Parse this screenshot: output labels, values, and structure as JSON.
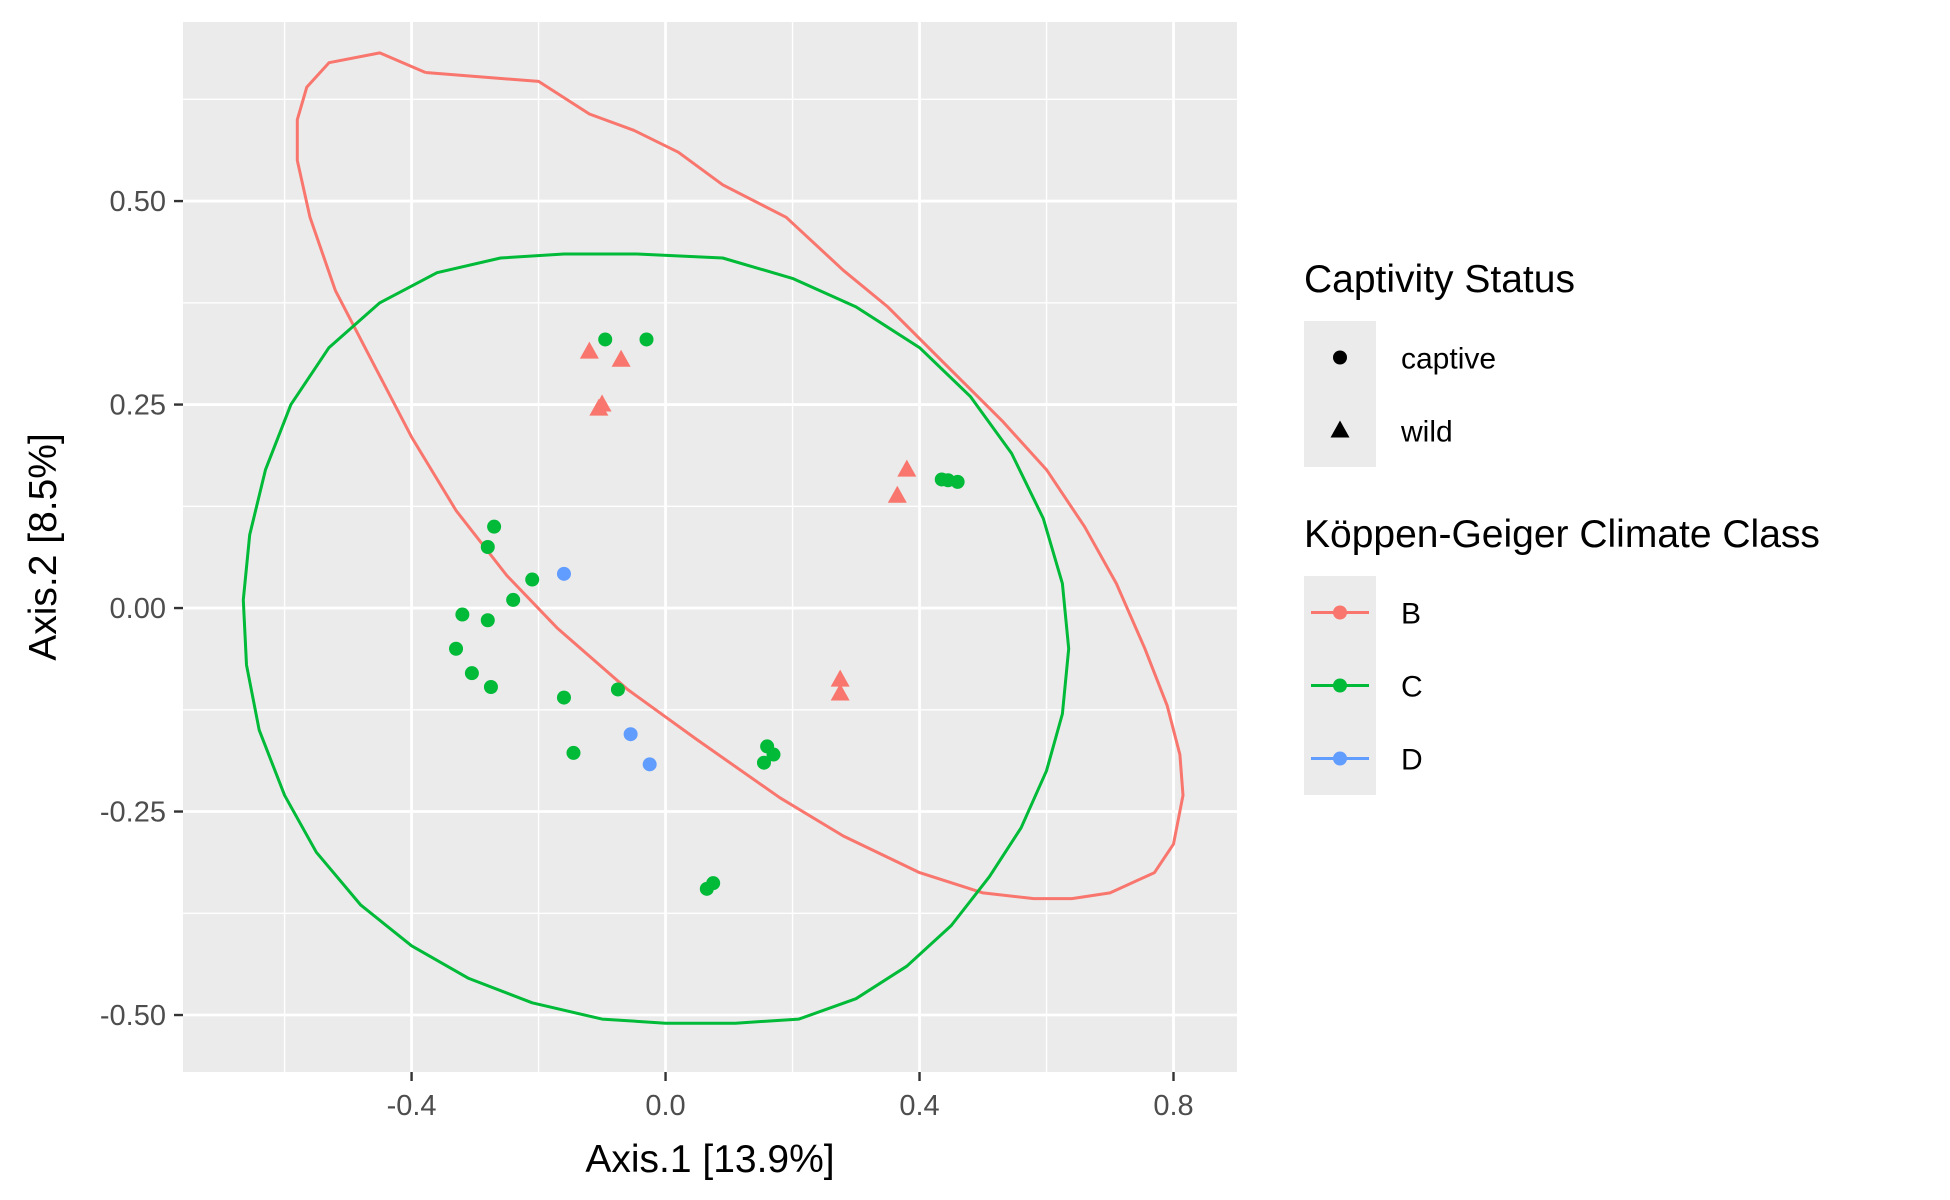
{
  "chart_data": {
    "type": "scatter",
    "xlabel": "Axis.1   [13.9%]",
    "ylabel": "Axis.2   [8.5%]",
    "xlim": [
      -0.76,
      0.9
    ],
    "ylim": [
      -0.57,
      0.72
    ],
    "x_ticks": [
      {
        "value": -0.4,
        "label": "-0.4"
      },
      {
        "value": 0.0,
        "label": "0.0"
      },
      {
        "value": 0.4,
        "label": "0.4"
      },
      {
        "value": 0.8,
        "label": "0.8"
      }
    ],
    "y_ticks": [
      {
        "value": 0.5,
        "label": "0.50"
      },
      {
        "value": 0.25,
        "label": "0.25"
      },
      {
        "value": 0.0,
        "label": "0.00"
      },
      {
        "value": -0.25,
        "label": "-0.25"
      },
      {
        "value": -0.5,
        "label": "-0.50"
      }
    ],
    "grid": true,
    "colors": {
      "B": "#F8766D",
      "C": "#00BA38",
      "D": "#619CFF"
    },
    "legends": [
      {
        "title": "Captivity Status",
        "kind": "shape",
        "entries": [
          {
            "label": "captive",
            "shape": "circle"
          },
          {
            "label": "wild",
            "shape": "triangle"
          }
        ]
      },
      {
        "title": "Köppen-Geiger Climate Class",
        "kind": "color",
        "entries": [
          {
            "label": "B",
            "color": "#F8766D"
          },
          {
            "label": "C",
            "color": "#00BA38"
          },
          {
            "label": "D",
            "color": "#619CFF"
          }
        ]
      }
    ],
    "legend_position": "right",
    "points": [
      {
        "x": -0.095,
        "y": 0.33,
        "climate": "C",
        "status": "captive"
      },
      {
        "x": -0.03,
        "y": 0.33,
        "climate": "C",
        "status": "captive"
      },
      {
        "x": -0.27,
        "y": 0.1,
        "climate": "C",
        "status": "captive"
      },
      {
        "x": -0.28,
        "y": 0.075,
        "climate": "C",
        "status": "captive"
      },
      {
        "x": -0.21,
        "y": 0.035,
        "climate": "C",
        "status": "captive"
      },
      {
        "x": -0.24,
        "y": 0.01,
        "climate": "C",
        "status": "captive"
      },
      {
        "x": -0.32,
        "y": -0.008,
        "climate": "C",
        "status": "captive"
      },
      {
        "x": -0.28,
        "y": -0.015,
        "climate": "C",
        "status": "captive"
      },
      {
        "x": -0.33,
        "y": -0.05,
        "climate": "C",
        "status": "captive"
      },
      {
        "x": -0.305,
        "y": -0.08,
        "climate": "C",
        "status": "captive"
      },
      {
        "x": -0.275,
        "y": -0.097,
        "climate": "C",
        "status": "captive"
      },
      {
        "x": -0.16,
        "y": -0.11,
        "climate": "C",
        "status": "captive"
      },
      {
        "x": -0.075,
        "y": -0.1,
        "climate": "C",
        "status": "captive"
      },
      {
        "x": -0.145,
        "y": -0.178,
        "climate": "C",
        "status": "captive"
      },
      {
        "x": 0.16,
        "y": -0.17,
        "climate": "C",
        "status": "captive"
      },
      {
        "x": 0.17,
        "y": -0.18,
        "climate": "C",
        "status": "captive"
      },
      {
        "x": 0.155,
        "y": -0.19,
        "climate": "C",
        "status": "captive"
      },
      {
        "x": 0.075,
        "y": -0.338,
        "climate": "C",
        "status": "captive"
      },
      {
        "x": 0.065,
        "y": -0.345,
        "climate": "C",
        "status": "captive"
      },
      {
        "x": 0.435,
        "y": 0.158,
        "climate": "C",
        "status": "captive"
      },
      {
        "x": 0.445,
        "y": 0.157,
        "climate": "C",
        "status": "captive"
      },
      {
        "x": 0.46,
        "y": 0.155,
        "climate": "C",
        "status": "captive"
      },
      {
        "x": -0.16,
        "y": 0.042,
        "climate": "D",
        "status": "captive"
      },
      {
        "x": -0.055,
        "y": -0.155,
        "climate": "D",
        "status": "captive"
      },
      {
        "x": -0.025,
        "y": -0.192,
        "climate": "D",
        "status": "captive"
      },
      {
        "x": -0.12,
        "y": 0.315,
        "climate": "B",
        "status": "wild"
      },
      {
        "x": -0.07,
        "y": 0.305,
        "climate": "B",
        "status": "wild"
      },
      {
        "x": -0.1,
        "y": 0.25,
        "climate": "B",
        "status": "wild"
      },
      {
        "x": -0.105,
        "y": 0.245,
        "climate": "B",
        "status": "wild"
      },
      {
        "x": 0.38,
        "y": 0.17,
        "climate": "B",
        "status": "wild"
      },
      {
        "x": 0.365,
        "y": 0.138,
        "climate": "B",
        "status": "wild"
      },
      {
        "x": 0.275,
        "y": -0.088,
        "climate": "B",
        "status": "wild"
      },
      {
        "x": 0.275,
        "y": -0.105,
        "climate": "B",
        "status": "wild"
      }
    ],
    "ellipses": [
      {
        "group": "B",
        "points": [
          [
            -0.378,
            0.658
          ],
          [
            -0.2,
            0.647
          ],
          [
            -0.12,
            0.607
          ],
          [
            -0.05,
            0.587
          ],
          [
            0.02,
            0.56
          ],
          [
            0.09,
            0.52
          ],
          [
            0.19,
            0.48
          ],
          [
            0.28,
            0.415
          ],
          [
            0.35,
            0.37
          ],
          [
            0.44,
            0.3
          ],
          [
            0.53,
            0.23
          ],
          [
            0.6,
            0.17
          ],
          [
            0.66,
            0.1
          ],
          [
            0.71,
            0.03
          ],
          [
            0.755,
            -0.05
          ],
          [
            0.79,
            -0.12
          ],
          [
            0.81,
            -0.18
          ],
          [
            0.815,
            -0.23
          ],
          [
            0.8,
            -0.29
          ],
          [
            0.77,
            -0.325
          ],
          [
            0.7,
            -0.35
          ],
          [
            0.64,
            -0.357
          ],
          [
            0.58,
            -0.357
          ],
          [
            0.5,
            -0.35
          ],
          [
            0.4,
            -0.325
          ],
          [
            0.28,
            -0.28
          ],
          [
            0.18,
            -0.233
          ],
          [
            0.05,
            -0.162
          ],
          [
            -0.06,
            -0.1
          ],
          [
            -0.17,
            -0.025
          ],
          [
            -0.25,
            0.04
          ],
          [
            -0.33,
            0.12
          ],
          [
            -0.4,
            0.21
          ],
          [
            -0.46,
            0.3
          ],
          [
            -0.52,
            0.39
          ],
          [
            -0.56,
            0.48
          ],
          [
            -0.58,
            0.55
          ],
          [
            -0.58,
            0.6
          ],
          [
            -0.565,
            0.64
          ],
          [
            -0.53,
            0.67
          ],
          [
            -0.45,
            0.682
          ],
          [
            -0.378,
            0.658
          ]
        ]
      },
      {
        "group": "C",
        "points": [
          [
            -0.045,
            0.435
          ],
          [
            0.09,
            0.43
          ],
          [
            0.2,
            0.405
          ],
          [
            0.3,
            0.37
          ],
          [
            0.4,
            0.32
          ],
          [
            0.48,
            0.26
          ],
          [
            0.545,
            0.19
          ],
          [
            0.595,
            0.11
          ],
          [
            0.625,
            0.03
          ],
          [
            0.635,
            -0.05
          ],
          [
            0.625,
            -0.13
          ],
          [
            0.6,
            -0.2
          ],
          [
            0.56,
            -0.27
          ],
          [
            0.51,
            -0.33
          ],
          [
            0.45,
            -0.39
          ],
          [
            0.38,
            -0.44
          ],
          [
            0.3,
            -0.48
          ],
          [
            0.21,
            -0.505
          ],
          [
            0.11,
            -0.51
          ],
          [
            0.0,
            -0.51
          ],
          [
            -0.1,
            -0.505
          ],
          [
            -0.21,
            -0.485
          ],
          [
            -0.31,
            -0.455
          ],
          [
            -0.4,
            -0.415
          ],
          [
            -0.48,
            -0.365
          ],
          [
            -0.55,
            -0.3
          ],
          [
            -0.6,
            -0.23
          ],
          [
            -0.64,
            -0.15
          ],
          [
            -0.66,
            -0.07
          ],
          [
            -0.665,
            0.01
          ],
          [
            -0.655,
            0.09
          ],
          [
            -0.63,
            0.17
          ],
          [
            -0.59,
            0.25
          ],
          [
            -0.53,
            0.32
          ],
          [
            -0.45,
            0.375
          ],
          [
            -0.36,
            0.412
          ],
          [
            -0.26,
            0.43
          ],
          [
            -0.16,
            0.435
          ],
          [
            -0.045,
            0.435
          ]
        ]
      }
    ]
  }
}
